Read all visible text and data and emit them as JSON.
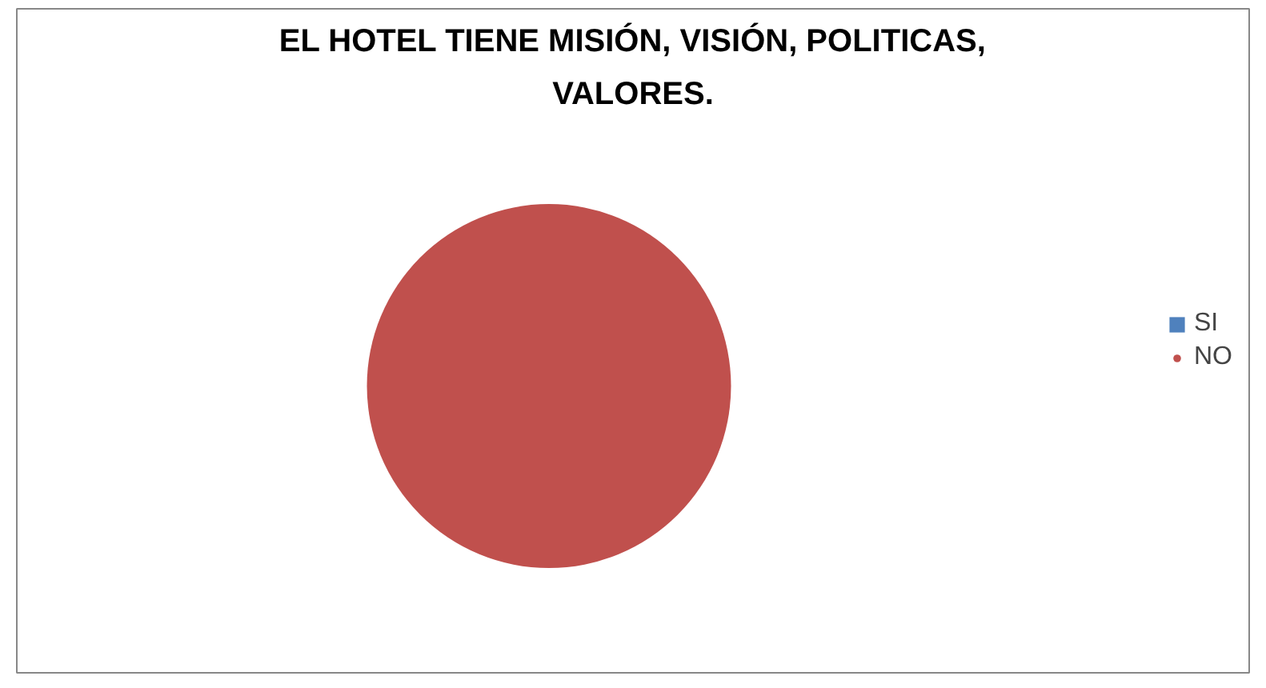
{
  "chart_data": {
    "type": "pie",
    "title": "EL HOTEL TIENE MISIÓN, VISIÓN, POLITICAS, VALORES.",
    "categories": [
      "SI",
      "NO"
    ],
    "values": [
      0,
      100
    ],
    "colors": [
      "#4f81bd",
      "#c0504d"
    ],
    "legend": "right"
  }
}
